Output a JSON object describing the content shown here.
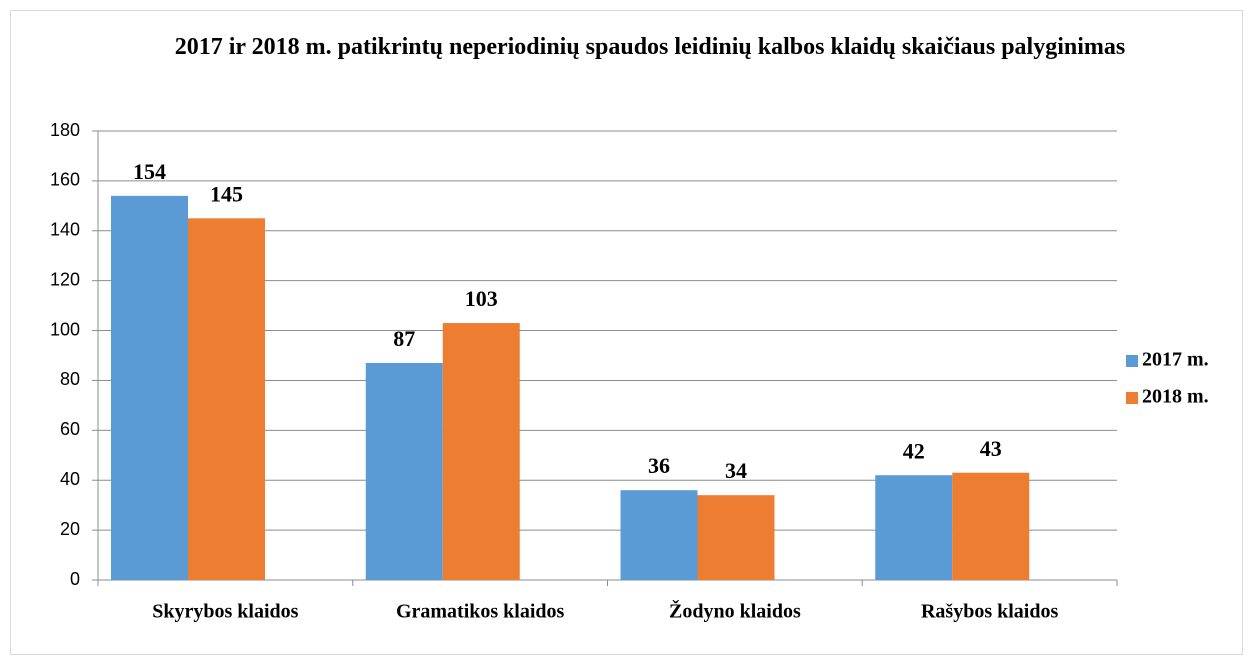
{
  "chart_data": {
    "type": "bar",
    "title": "2017 ir 2018 m. patikrintų neperiodinių spaudos leidinių kalbos klaidų skaičiaus palyginimas",
    "categories": [
      "Skyrybos klaidos",
      "Gramatikos klaidos",
      "Žodyno klaidos",
      "Rašybos klaidos"
    ],
    "series": [
      {
        "name": "2017 m.",
        "color": "#5b9bd5",
        "values": [
          154,
          87,
          36,
          42
        ]
      },
      {
        "name": "2018 m.",
        "color": "#ed7d31",
        "values": [
          145,
          103,
          34,
          43
        ]
      }
    ],
    "ylim": [
      0,
      180
    ],
    "yticks": [
      0,
      20,
      40,
      60,
      80,
      100,
      120,
      140,
      160,
      180
    ],
    "grid": true,
    "legend": "right"
  }
}
